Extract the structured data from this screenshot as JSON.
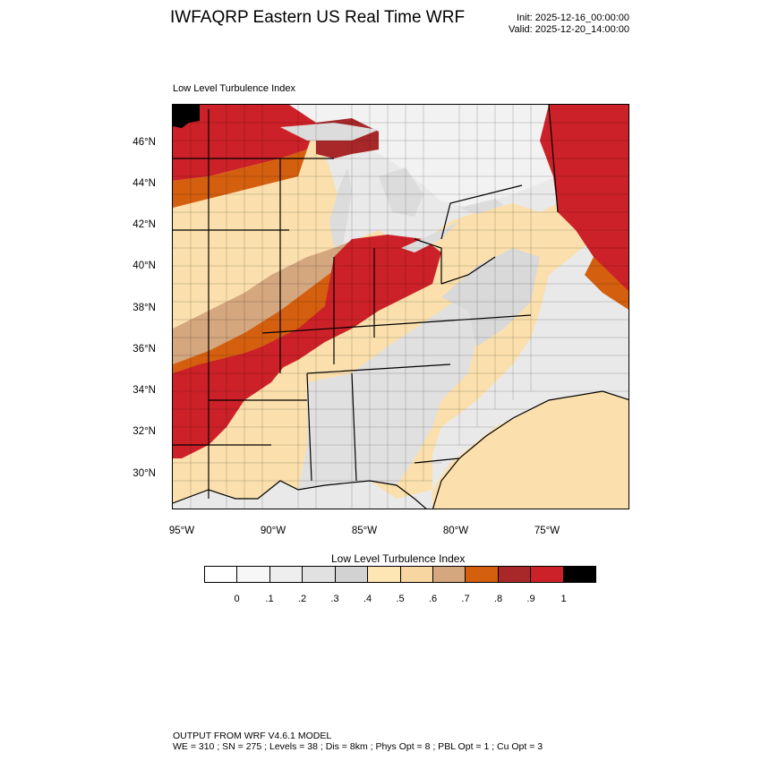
{
  "header": {
    "title": "IWFAQRP Eastern US Real Time WRF",
    "init": "Init: 2025-12-16_00:00:00",
    "valid": "Valid: 2025-12-20_14:00:00"
  },
  "map": {
    "subtitle": "Low Level Turbulence Index",
    "lat_labels": [
      "46°N",
      "44°N",
      "42°N",
      "40°N",
      "38°N",
      "36°N",
      "34°N",
      "32°N",
      "30°N"
    ],
    "lon_labels": [
      "95°W",
      "90°W",
      "85°W",
      "80°W",
      "75°W"
    ],
    "colors": {
      "land": "#fbe0ad",
      "ocean": "#e8e8e8",
      "high": "#cc2128",
      "orange": "#d45f0f",
      "tan": "#d1a47d",
      "lake": "#dcdcdc",
      "border": "#000000"
    }
  },
  "colorbar": {
    "title": "Low Level Turbulence Index",
    "ticks": [
      "0",
      ".1",
      ".2",
      ".3",
      ".4",
      ".5",
      ".6",
      ".7",
      ".8",
      ".9",
      "1"
    ],
    "colors": [
      "#ffffff",
      "#f7f7f7",
      "#eeeeee",
      "#e1e1e1",
      "#d2d2d2",
      "#fde5b4",
      "#f8d6a2",
      "#d4a77f",
      "#d45f0f",
      "#a8282a",
      "#cc2128",
      "#000000"
    ]
  },
  "footer": {
    "line1": "OUTPUT FROM WRF V4.6.1 MODEL",
    "line2": "WE = 310 ; SN = 275 ; Levels = 38 ; Dis = 8km ; Phys Opt = 8 ; PBL Opt = 1 ; Cu Opt = 3"
  }
}
